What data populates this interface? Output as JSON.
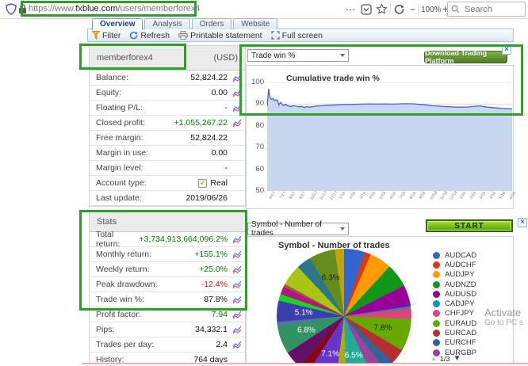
{
  "browser": {
    "url": {
      "scheme_www": "https://www.",
      "domain": "fxblue.com",
      "path": "/users/memberforex4"
    },
    "controls": {
      "more": "⋯",
      "zoom_out": "−",
      "zoom_level": "100%",
      "zoom_in": "+"
    },
    "search_placeholder": "Search"
  },
  "tabs": [
    {
      "label": "Overview",
      "active": true
    },
    {
      "label": "Analysis",
      "active": false
    },
    {
      "label": "Orders",
      "active": false
    },
    {
      "label": "Website",
      "active": false
    }
  ],
  "toolbar": {
    "items": [
      {
        "name": "filter",
        "label": "Filter"
      },
      {
        "name": "refresh",
        "label": "Refresh"
      },
      {
        "name": "printable-statement",
        "label": "Printable statement"
      },
      {
        "name": "full-screen",
        "label": "Full screen"
      }
    ]
  },
  "account": {
    "name": "memberforex4",
    "currency": "(USD)",
    "check_glyph": "✓",
    "rows": [
      {
        "label": "Balance:",
        "value": "52,824.22",
        "color": "normal",
        "icon": true
      },
      {
        "label": "Equity:",
        "value": "0.00",
        "color": "normal",
        "icon": true
      },
      {
        "label": "Floating P/L:",
        "value": "-",
        "color": "normal",
        "icon": true
      },
      {
        "label": "Closed profit:",
        "value": "+1,055,267.22",
        "color": "pos",
        "icon": true
      },
      {
        "label": "Free margin:",
        "value": "52,824.22",
        "color": "normal",
        "icon": false
      },
      {
        "label": "Margin in use:",
        "value": "0.00",
        "color": "normal",
        "icon": false
      },
      {
        "label": "Margin level:",
        "value": "-",
        "color": "normal",
        "icon": false
      },
      {
        "label": "Account type:",
        "value": "Real",
        "color": "normal",
        "icon": false,
        "checkbox": true
      },
      {
        "label": "Last update:",
        "value": "2019/06/26",
        "color": "normal",
        "icon": false
      }
    ]
  },
  "stats": {
    "title": "Stats",
    "rows": [
      {
        "label": "Total return:",
        "value": "+3,734,913,664,096.2%",
        "color": "pos",
        "icon": true
      },
      {
        "label": "Monthly return:",
        "value": "+155.1%",
        "color": "pos",
        "icon": true
      },
      {
        "label": "Weekly return:",
        "value": "+25.0%",
        "color": "pos",
        "icon": true
      },
      {
        "label": "Peak drawdown:",
        "value": "-12.4%",
        "color": "neg",
        "icon": true
      },
      {
        "label": "Trade win %:",
        "value": "87.8%",
        "color": "normal",
        "icon": true
      },
      {
        "label": "Profit factor:",
        "value": "7.94",
        "color": "pos",
        "icon": true
      },
      {
        "label": "Pips:",
        "value": "34,332.1",
        "color": "normal",
        "icon": true
      },
      {
        "label": "Trades per day:",
        "value": "2.4",
        "color": "normal",
        "icon": true
      },
      {
        "label": "History:",
        "value": "764 days",
        "color": "normal",
        "icon": false
      }
    ]
  },
  "win_chart": {
    "selector": "Trade win %",
    "ad_label": "Download Trading Platform",
    "ad_close": "×",
    "chart_data": {
      "type": "area",
      "title": "Cumulative trade win %",
      "ylim": [
        50,
        100
      ],
      "yticks": [
        100,
        90,
        80,
        70,
        60,
        50
      ],
      "line_color": "#3f68c0",
      "fill_color": "#c9d6f0",
      "x_labels": [
        "6/17",
        "7/17",
        "8/17",
        "9/17",
        "10/17",
        "11/17",
        "12/17",
        "1/18",
        "2/18",
        "3/18",
        "4/18",
        "5/18",
        "6/18",
        "7/18",
        "8/18",
        "9/18",
        "10/18",
        "11/18",
        "12/18",
        "1/19",
        "2/19",
        "3/19",
        "4/19",
        "5/19",
        "6/19"
      ],
      "points": [
        [
          0,
          89
        ],
        [
          0.6,
          97
        ],
        [
          1.2,
          93
        ],
        [
          1.8,
          92.2
        ],
        [
          2.4,
          92.6
        ],
        [
          3,
          91.6
        ],
        [
          3.6,
          92
        ],
        [
          4.2,
          91.8
        ],
        [
          4.8,
          89.6
        ],
        [
          5.4,
          90.8
        ],
        [
          6,
          90.2
        ],
        [
          6.6,
          89.4
        ],
        [
          7.5,
          89.8
        ],
        [
          8.5,
          89.2
        ],
        [
          9.5,
          88.9
        ],
        [
          10.5,
          89.2
        ],
        [
          12,
          89.1
        ],
        [
          13,
          88.7
        ],
        [
          14,
          89
        ],
        [
          15,
          88.5
        ],
        [
          16,
          88.8
        ],
        [
          17.5,
          88.6
        ],
        [
          19,
          88.9
        ],
        [
          20,
          89.1
        ],
        [
          22,
          89.2
        ],
        [
          24,
          89.4
        ],
        [
          26,
          89.5
        ],
        [
          28,
          89.6
        ],
        [
          30,
          89.7
        ],
        [
          33,
          89.8
        ],
        [
          36,
          89.9
        ],
        [
          39,
          90
        ],
        [
          42,
          90.1
        ],
        [
          45,
          90
        ],
        [
          48,
          90.1
        ],
        [
          51,
          90
        ],
        [
          54,
          90.1
        ],
        [
          57,
          90.2
        ],
        [
          60,
          90.1
        ],
        [
          62,
          89.9
        ],
        [
          64,
          89.7
        ],
        [
          66,
          89.4
        ],
        [
          68,
          89.2
        ],
        [
          70,
          89.1
        ],
        [
          72,
          88.9
        ],
        [
          74,
          88.8
        ],
        [
          76,
          88.7
        ],
        [
          78,
          88.6
        ],
        [
          80,
          88.6
        ],
        [
          82,
          88.7
        ],
        [
          84,
          88.9
        ],
        [
          86,
          89.1
        ],
        [
          87,
          89.2
        ],
        [
          88,
          88.9
        ],
        [
          90,
          88.6
        ],
        [
          92,
          88.4
        ],
        [
          94,
          88.2
        ],
        [
          96,
          88
        ],
        [
          98,
          87.9
        ],
        [
          100,
          87.8
        ]
      ]
    }
  },
  "symbol_chart": {
    "selector": "Symbol - Number of trades",
    "ad_label": "START",
    "ad_close": "×",
    "chart_data": {
      "type": "pie",
      "title": "Symbol - Number of trades",
      "slices": [
        {
          "color": "#3366CC",
          "value": 5.0
        },
        {
          "color": "#DC3912",
          "value": 1.5
        },
        {
          "color": "#FF9900",
          "value": 5.3
        },
        {
          "color": "#109618",
          "value": 5.7
        },
        {
          "color": "#990099",
          "value": 5.1
        },
        {
          "color": "#0099C6",
          "value": 0.5
        },
        {
          "color": "#DD4477",
          "value": 2.6
        },
        {
          "color": "#66AA00",
          "value": 7.8,
          "label": "7.8%",
          "label_color": "#222"
        },
        {
          "color": "#B82E2E",
          "value": 3.5
        },
        {
          "color": "#316395",
          "value": 2.6
        },
        {
          "color": "#994499",
          "value": 3.3
        },
        {
          "color": "#22AA99",
          "value": 6.5,
          "label": "6.5%",
          "label_color": "#fff"
        },
        {
          "color": "#AAAA11",
          "value": 2.6
        },
        {
          "color": "#6633CC",
          "value": 7.1,
          "label": "7.1%",
          "label_color": "#fff"
        },
        {
          "color": "#8B0707",
          "value": 2.2
        },
        {
          "color": "#651067",
          "value": 4.5
        },
        {
          "color": "#329262",
          "value": 6.8,
          "label": "6.8%",
          "label_color": "#fff"
        },
        {
          "color": "#5574A6",
          "value": 1.0
        },
        {
          "color": "#3B3EAC",
          "value": 5.1,
          "label": "5.1%",
          "label_color": "#fff"
        },
        {
          "color": "#16D620",
          "value": 1.6
        },
        {
          "color": "#B91383",
          "value": 1.9
        },
        {
          "color": "#9C5935",
          "value": 0.7
        },
        {
          "color": "#A9C413",
          "value": 5.1
        },
        {
          "color": "#2A778D",
          "value": 3.5
        },
        {
          "color": "#668D1C",
          "value": 6.3,
          "label": "6.3%",
          "label_color": "#222"
        },
        {
          "color": "#BEA413",
          "value": 2.2
        }
      ],
      "legend": [
        {
          "label": "AUDCAD",
          "color": "#3366CC"
        },
        {
          "label": "AUDCHF",
          "color": "#DC3912"
        },
        {
          "label": "AUDJPY",
          "color": "#FF9900"
        },
        {
          "label": "AUDNZD",
          "color": "#109618"
        },
        {
          "label": "AUDUSD",
          "color": "#990099"
        },
        {
          "label": "CADJPY",
          "color": "#0099C6"
        },
        {
          "label": "CHFJPY",
          "color": "#DD4477"
        },
        {
          "label": "EURAUD",
          "color": "#66AA00"
        },
        {
          "label": "EURCAD",
          "color": "#B82E2E"
        },
        {
          "label": "EURCHF",
          "color": "#316395"
        },
        {
          "label": "EURGBP",
          "color": "#994499"
        }
      ]
    },
    "legend_pager": {
      "up": "▲",
      "page": "1/3",
      "down": "▼"
    }
  },
  "watermark": {
    "line1": "Activate",
    "line2": "Go to PC s"
  }
}
